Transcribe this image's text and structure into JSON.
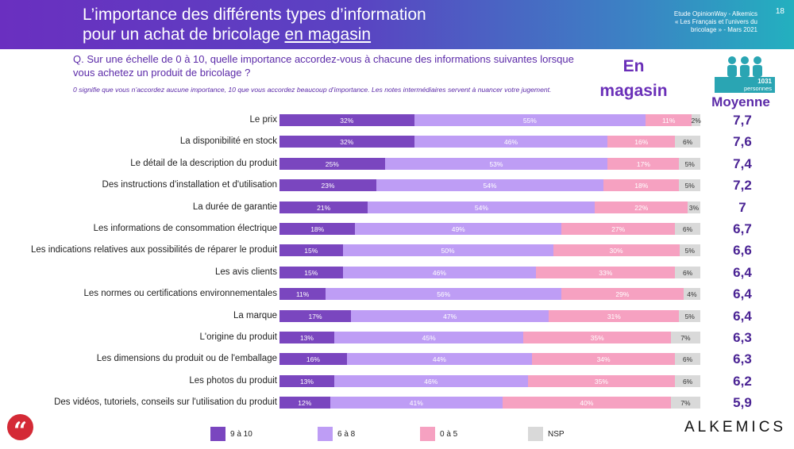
{
  "header": {
    "title_line1": "L’importance des différents types d’information",
    "title_line2_prefix": "pour un achat de bricolage ",
    "title_line2_underlined": "en magasin",
    "source_line1": "Etude OpinionWay - Alkemics",
    "source_line2": "« Les Français et l’univers du",
    "source_line3": "bricolage » - Mars 2021",
    "page_number": "18"
  },
  "question": "Q. Sur une échelle de 0 à 10, quelle importance accordez-vous à chacune des informations suivantes lorsque vous achetez un produit de bricolage ?",
  "question_note": "0 signifie que vous n’accordez aucune importance, 10 que vous accordez beaucoup d’importance. Les notes intermédiaires servent à nuancer votre jugement.",
  "channel_label_line1": "En",
  "channel_label_line2": "magasin",
  "sample": {
    "count": "1031",
    "unit": "personnes"
  },
  "mean_header": "Moyenne",
  "chart_data": {
    "type": "bar",
    "orientation": "horizontal",
    "stacked": true,
    "value_unit": "%",
    "categories": [
      "Le prix",
      "La disponibilité en stock",
      "Le détail de la description du produit",
      "Des instructions d'installation et d'utilisation",
      "La durée de garantie",
      "Les informations de consommation électrique",
      "Les indications relatives aux possibilités de réparer le produit",
      "Les avis clients",
      "Les normes ou certifications environnementales",
      "La marque",
      "L'origine du produit",
      "Les dimensions du produit ou de l'emballage",
      "Les photos du produit",
      "Des vidéos, tutoriels, conseils sur l'utilisation du produit"
    ],
    "series": [
      {
        "name": "9 à 10",
        "color": "#7a46bf",
        "values": [
          32,
          32,
          25,
          23,
          21,
          18,
          15,
          15,
          11,
          17,
          13,
          16,
          13,
          12
        ]
      },
      {
        "name": "6 à 8",
        "color": "#be9df5",
        "values": [
          55,
          46,
          53,
          54,
          54,
          49,
          50,
          46,
          56,
          47,
          45,
          44,
          46,
          41
        ]
      },
      {
        "name": "0 à 5",
        "color": "#f6a1c1",
        "values": [
          11,
          16,
          17,
          18,
          22,
          27,
          30,
          33,
          29,
          31,
          35,
          34,
          35,
          40
        ]
      },
      {
        "name": "NSP",
        "color": "#d9d9d9",
        "values": [
          2,
          6,
          5,
          5,
          3,
          6,
          5,
          6,
          4,
          5,
          7,
          6,
          6,
          7
        ]
      }
    ],
    "means": [
      "7,7",
      "7,6",
      "7,4",
      "7,2",
      "7",
      "6,7",
      "6,6",
      "6,4",
      "6,4",
      "6,4",
      "6,3",
      "6,3",
      "6,2",
      "5,9"
    ]
  },
  "brand": "ALKEMICS",
  "icons": {
    "quote": "quote-icon",
    "people": "people-icon"
  }
}
